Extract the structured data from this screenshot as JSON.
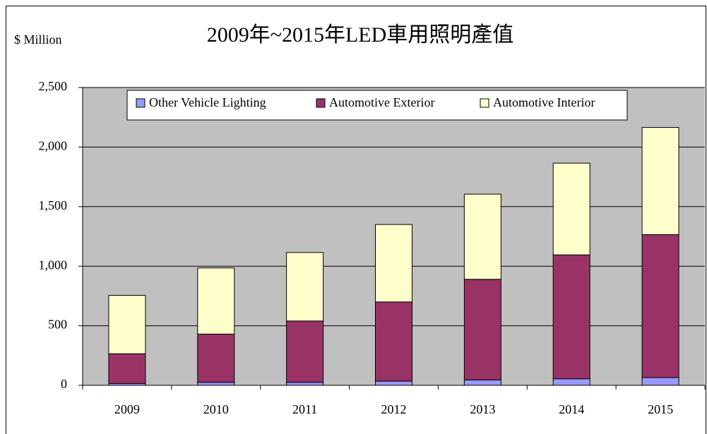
{
  "chart_data": {
    "type": "stacked-bar",
    "title": "2009年~2015年LED車用照明產值",
    "y_axis_label": "$ Million",
    "categories": [
      "2009",
      "2010",
      "2011",
      "2012",
      "2013",
      "2014",
      "2015"
    ],
    "series": [
      {
        "name": "Other Vehicle Lighting",
        "color": "#9999ff",
        "values": [
          15,
          25,
          25,
          35,
          45,
          55,
          65
        ]
      },
      {
        "name": "Automotive Exterior",
        "color": "#993366",
        "values": [
          250,
          405,
          515,
          665,
          845,
          1040,
          1200
        ]
      },
      {
        "name": "Automotive Interior",
        "color": "#ffffcc",
        "values": [
          490,
          555,
          575,
          650,
          715,
          770,
          900
        ]
      }
    ],
    "ylim": [
      0,
      2500
    ],
    "yticks": [
      0,
      500,
      {
        "value": 1000,
        "label": "1,000"
      },
      {
        "value": 1500,
        "label": "1,500"
      },
      {
        "value": 2000,
        "label": "2,000"
      },
      {
        "value": 2500,
        "label": "2,500"
      }
    ],
    "grid": true,
    "legend": "top"
  }
}
